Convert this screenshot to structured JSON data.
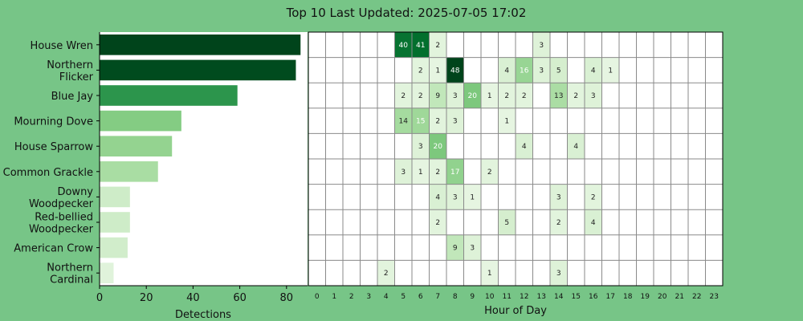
{
  "title": "Top 10 Last Updated: 2025-07-05 17:02",
  "chart_data": [
    {
      "type": "bar",
      "orientation": "horizontal",
      "categories": [
        [
          "House Wren"
        ],
        [
          "Northern",
          "Flicker"
        ],
        [
          "Blue Jay"
        ],
        [
          "Mourning Dove"
        ],
        [
          "House Sparrow"
        ],
        [
          "Common Grackle"
        ],
        [
          "Downy",
          "Woodpecker"
        ],
        [
          "Red-bellied",
          "Woodpecker"
        ],
        [
          "American Crow"
        ],
        [
          "Northern",
          "Cardinal"
        ]
      ],
      "values": [
        86,
        84,
        59,
        35,
        31,
        25,
        13,
        13,
        12,
        6
      ],
      "xlabel": "Detections",
      "xlim": [
        0,
        89
      ],
      "xticks": [
        0,
        20,
        40,
        60,
        80
      ],
      "grid": false
    },
    {
      "type": "heatmap",
      "xlabel": "Hour of Day",
      "hours": [
        "0",
        "1",
        "2",
        "3",
        "4",
        "5",
        "6",
        "7",
        "8",
        "9",
        "10",
        "11",
        "12",
        "13",
        "14",
        "15",
        "16",
        "17",
        "18",
        "19",
        "20",
        "21",
        "22",
        "23"
      ],
      "current_hour": 17,
      "current_hour_color": "#e8f04a",
      "max_value": 48,
      "grid": true,
      "cells": [
        {
          "row": 0,
          "hour": 5,
          "value": 40
        },
        {
          "row": 0,
          "hour": 6,
          "value": 41
        },
        {
          "row": 0,
          "hour": 7,
          "value": 2
        },
        {
          "row": 0,
          "hour": 13,
          "value": 3
        },
        {
          "row": 1,
          "hour": 6,
          "value": 2
        },
        {
          "row": 1,
          "hour": 7,
          "value": 1
        },
        {
          "row": 1,
          "hour": 8,
          "value": 48
        },
        {
          "row": 1,
          "hour": 11,
          "value": 4
        },
        {
          "row": 1,
          "hour": 12,
          "value": 16
        },
        {
          "row": 1,
          "hour": 13,
          "value": 3
        },
        {
          "row": 1,
          "hour": 14,
          "value": 5
        },
        {
          "row": 1,
          "hour": 16,
          "value": 4
        },
        {
          "row": 1,
          "hour": 17,
          "value": 1
        },
        {
          "row": 2,
          "hour": 5,
          "value": 2
        },
        {
          "row": 2,
          "hour": 6,
          "value": 2
        },
        {
          "row": 2,
          "hour": 7,
          "value": 9
        },
        {
          "row": 2,
          "hour": 8,
          "value": 3
        },
        {
          "row": 2,
          "hour": 9,
          "value": 20
        },
        {
          "row": 2,
          "hour": 10,
          "value": 1
        },
        {
          "row": 2,
          "hour": 11,
          "value": 2
        },
        {
          "row": 2,
          "hour": 12,
          "value": 2
        },
        {
          "row": 2,
          "hour": 14,
          "value": 13
        },
        {
          "row": 2,
          "hour": 15,
          "value": 2
        },
        {
          "row": 2,
          "hour": 16,
          "value": 3
        },
        {
          "row": 3,
          "hour": 5,
          "value": 14
        },
        {
          "row": 3,
          "hour": 6,
          "value": 15
        },
        {
          "row": 3,
          "hour": 7,
          "value": 2
        },
        {
          "row": 3,
          "hour": 8,
          "value": 3
        },
        {
          "row": 3,
          "hour": 11,
          "value": 1
        },
        {
          "row": 4,
          "hour": 6,
          "value": 3
        },
        {
          "row": 4,
          "hour": 7,
          "value": 20
        },
        {
          "row": 4,
          "hour": 12,
          "value": 4
        },
        {
          "row": 4,
          "hour": 15,
          "value": 4
        },
        {
          "row": 5,
          "hour": 5,
          "value": 3
        },
        {
          "row": 5,
          "hour": 6,
          "value": 1
        },
        {
          "row": 5,
          "hour": 7,
          "value": 2
        },
        {
          "row": 5,
          "hour": 8,
          "value": 17
        },
        {
          "row": 5,
          "hour": 10,
          "value": 2
        },
        {
          "row": 6,
          "hour": 7,
          "value": 4
        },
        {
          "row": 6,
          "hour": 8,
          "value": 3
        },
        {
          "row": 6,
          "hour": 9,
          "value": 1
        },
        {
          "row": 6,
          "hour": 14,
          "value": 3
        },
        {
          "row": 6,
          "hour": 16,
          "value": 2
        },
        {
          "row": 7,
          "hour": 7,
          "value": 2
        },
        {
          "row": 7,
          "hour": 11,
          "value": 5
        },
        {
          "row": 7,
          "hour": 14,
          "value": 2
        },
        {
          "row": 7,
          "hour": 16,
          "value": 4
        },
        {
          "row": 8,
          "hour": 8,
          "value": 9
        },
        {
          "row": 8,
          "hour": 9,
          "value": 3
        },
        {
          "row": 9,
          "hour": 4,
          "value": 2
        },
        {
          "row": 9,
          "hour": 10,
          "value": 1
        },
        {
          "row": 9,
          "hour": 14,
          "value": 3
        }
      ]
    }
  ]
}
